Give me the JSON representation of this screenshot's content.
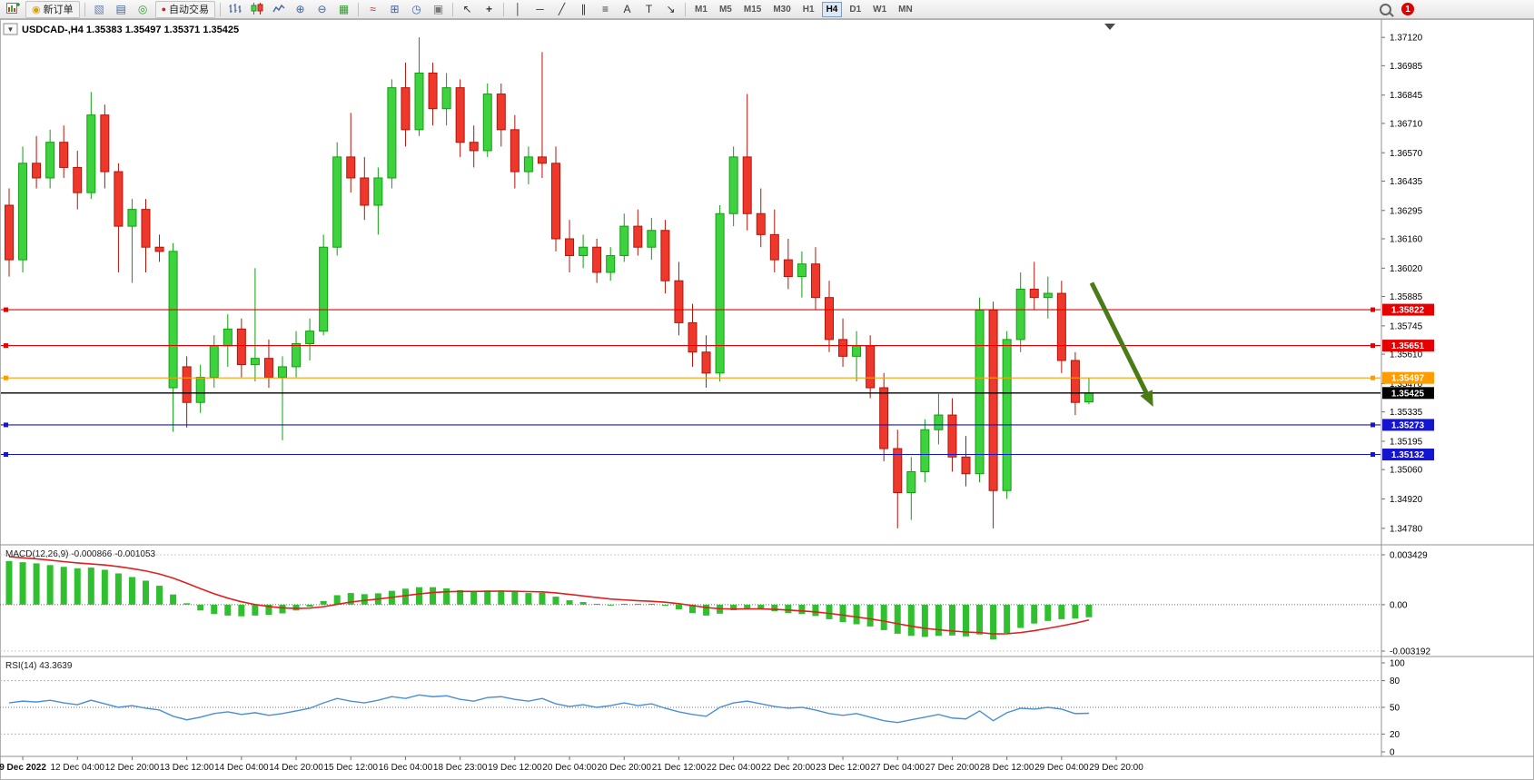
{
  "toolbar": {
    "new_order_label": "新订单",
    "autotrading_label": "自动交易",
    "notification_badge": "1",
    "tools": [
      {
        "glyph": "▧",
        "name": "profiles-button"
      },
      {
        "glyph": "▤",
        "name": "metaeditor-button"
      },
      {
        "glyph": "◎",
        "name": "market-info-button"
      },
      {
        "glyph": "⊕",
        "name": "zoom-in-button"
      },
      {
        "glyph": "⊖",
        "name": "zoom-out-button"
      },
      {
        "glyph": "▦",
        "name": "tile-windows-button"
      },
      {
        "glyph": "≈",
        "name": "indicators-button"
      },
      {
        "glyph": "⊞",
        "name": "add-indicator-button"
      },
      {
        "glyph": "◷",
        "name": "period-button"
      },
      {
        "glyph": "▣",
        "name": "templates-button"
      },
      {
        "glyph": "↖",
        "name": "cursor-button"
      },
      {
        "glyph": "+",
        "name": "crosshair-button"
      },
      {
        "glyph": "│",
        "name": "vertical-line-button"
      },
      {
        "glyph": "─",
        "name": "horizontal-line-button"
      },
      {
        "glyph": "╱",
        "name": "trendline-button"
      },
      {
        "glyph": "∥",
        "name": "channel-button"
      },
      {
        "glyph": "≡",
        "name": "fibonacci-button"
      },
      {
        "glyph": "A",
        "name": "text-button"
      },
      {
        "glyph": "T",
        "name": "text-label-button"
      },
      {
        "glyph": "↘",
        "name": "arrows-button"
      }
    ],
    "timeframes": {
      "options": [
        "M1",
        "M5",
        "M15",
        "M30",
        "H1",
        "H4",
        "D1",
        "W1",
        "MN"
      ],
      "active": "H4"
    }
  },
  "chart_data": {
    "type": "candlestick",
    "symbol": "USDCAD-,H4",
    "title": "USDCAD-,H4  1.35383 1.35497 1.35371 1.35425",
    "ohlc": {
      "open": 1.35383,
      "high": 1.35497,
      "low": 1.35371,
      "close": 1.35425
    },
    "colors": {
      "up": "#3fd23f",
      "up_border": "#0fa00f",
      "down": "#ef382c",
      "down_border": "#b31409",
      "background": "#ffffff"
    },
    "price_axis": {
      "top": 1.3719,
      "bottom": 1.3471,
      "labels": [
        "1.37120",
        "1.36985",
        "1.36845",
        "1.36710",
        "1.36570",
        "1.36435",
        "1.36295",
        "1.36160",
        "1.36020",
        "1.35885",
        "1.35745",
        "1.35610",
        "1.35470",
        "1.35335",
        "1.35195",
        "1.35060",
        "1.34920",
        "1.34780"
      ]
    },
    "candles": [
      [
        1.3632,
        1.364,
        1.3598,
        1.3606
      ],
      [
        1.3606,
        1.366,
        1.36,
        1.3652
      ],
      [
        1.3652,
        1.3665,
        1.364,
        1.3645
      ],
      [
        1.3645,
        1.3668,
        1.364,
        1.3662
      ],
      [
        1.3662,
        1.367,
        1.3645,
        1.365
      ],
      [
        1.365,
        1.3658,
        1.363,
        1.3638
      ],
      [
        1.3638,
        1.3686,
        1.3635,
        1.3675
      ],
      [
        1.3675,
        1.368,
        1.364,
        1.3648
      ],
      [
        1.3648,
        1.3652,
        1.36,
        1.3622
      ],
      [
        1.3622,
        1.3635,
        1.3595,
        1.363
      ],
      [
        1.363,
        1.3635,
        1.36,
        1.3612
      ],
      [
        1.3612,
        1.3618,
        1.3605,
        1.361
      ],
      [
        1.3545,
        1.3614,
        1.3524,
        1.361
      ],
      [
        1.3555,
        1.356,
        1.3526,
        1.3538
      ],
      [
        1.3538,
        1.3556,
        1.3533,
        1.355
      ],
      [
        1.355,
        1.357,
        1.3545,
        1.3565
      ],
      [
        1.3565,
        1.358,
        1.3555,
        1.3573
      ],
      [
        1.3573,
        1.3578,
        1.355,
        1.3556
      ],
      [
        1.3556,
        1.3602,
        1.3548,
        1.3559
      ],
      [
        1.3559,
        1.3568,
        1.3545,
        1.355
      ],
      [
        1.355,
        1.356,
        1.352,
        1.3555
      ],
      [
        1.3555,
        1.3572,
        1.355,
        1.3566
      ],
      [
        1.3566,
        1.3578,
        1.3558,
        1.3572
      ],
      [
        1.3572,
        1.3618,
        1.357,
        1.3612
      ],
      [
        1.3612,
        1.3662,
        1.3608,
        1.3655
      ],
      [
        1.3655,
        1.3676,
        1.3638,
        1.3645
      ],
      [
        1.3645,
        1.3655,
        1.3625,
        1.3632
      ],
      [
        1.3632,
        1.365,
        1.3618,
        1.3645
      ],
      [
        1.3645,
        1.3692,
        1.364,
        1.3688
      ],
      [
        1.3688,
        1.37,
        1.366,
        1.3668
      ],
      [
        1.3668,
        1.3712,
        1.3665,
        1.3695
      ],
      [
        1.3695,
        1.37,
        1.367,
        1.3678
      ],
      [
        1.3678,
        1.3695,
        1.367,
        1.3688
      ],
      [
        1.3688,
        1.3692,
        1.3655,
        1.3662
      ],
      [
        1.3662,
        1.367,
        1.365,
        1.3658
      ],
      [
        1.3658,
        1.369,
        1.3655,
        1.3685
      ],
      [
        1.3685,
        1.369,
        1.366,
        1.3668
      ],
      [
        1.3668,
        1.3675,
        1.364,
        1.3648
      ],
      [
        1.3648,
        1.366,
        1.3642,
        1.3655
      ],
      [
        1.3655,
        1.3705,
        1.3645,
        1.3652
      ],
      [
        1.3652,
        1.366,
        1.361,
        1.3616
      ],
      [
        1.3616,
        1.3625,
        1.36,
        1.3608
      ],
      [
        1.3608,
        1.3618,
        1.3602,
        1.3612
      ],
      [
        1.3612,
        1.3616,
        1.3595,
        1.36
      ],
      [
        1.36,
        1.3612,
        1.3596,
        1.3608
      ],
      [
        1.3608,
        1.3628,
        1.3605,
        1.3622
      ],
      [
        1.3622,
        1.363,
        1.3608,
        1.3612
      ],
      [
        1.3612,
        1.3626,
        1.3606,
        1.362
      ],
      [
        1.362,
        1.3625,
        1.359,
        1.3596
      ],
      [
        1.3596,
        1.3605,
        1.357,
        1.3576
      ],
      [
        1.3576,
        1.3585,
        1.3555,
        1.3562
      ],
      [
        1.3562,
        1.357,
        1.3545,
        1.3552
      ],
      [
        1.3552,
        1.3632,
        1.3548,
        1.3628
      ],
      [
        1.3628,
        1.366,
        1.3622,
        1.3655
      ],
      [
        1.3655,
        1.3685,
        1.362,
        1.3628
      ],
      [
        1.3628,
        1.364,
        1.3612,
        1.3618
      ],
      [
        1.3618,
        1.363,
        1.36,
        1.3606
      ],
      [
        1.3606,
        1.3616,
        1.3592,
        1.3598
      ],
      [
        1.3598,
        1.361,
        1.3588,
        1.3604
      ],
      [
        1.3604,
        1.3612,
        1.3582,
        1.3588
      ],
      [
        1.3588,
        1.3596,
        1.3562,
        1.3568
      ],
      [
        1.3568,
        1.3578,
        1.3555,
        1.356
      ],
      [
        1.356,
        1.3572,
        1.3548,
        1.3565
      ],
      [
        1.3565,
        1.357,
        1.354,
        1.3545
      ],
      [
        1.3545,
        1.3552,
        1.351,
        1.3516
      ],
      [
        1.3516,
        1.3525,
        1.3478,
        1.3495
      ],
      [
        1.3495,
        1.3512,
        1.3482,
        1.3505
      ],
      [
        1.3505,
        1.353,
        1.35,
        1.3525
      ],
      [
        1.3525,
        1.3542,
        1.3518,
        1.3532
      ],
      [
        1.3532,
        1.354,
        1.3505,
        1.3512
      ],
      [
        1.3512,
        1.3522,
        1.3498,
        1.3504
      ],
      [
        1.3504,
        1.3588,
        1.35,
        1.3582
      ],
      [
        1.3582,
        1.3586,
        1.3478,
        1.3496
      ],
      [
        1.3496,
        1.3572,
        1.3492,
        1.3568
      ],
      [
        1.3568,
        1.36,
        1.3562,
        1.3592
      ],
      [
        1.3592,
        1.3605,
        1.3582,
        1.3588
      ],
      [
        1.3588,
        1.3598,
        1.3578,
        1.359
      ],
      [
        1.359,
        1.3596,
        1.3552,
        1.3558
      ],
      [
        1.3558,
        1.3562,
        1.3532,
        1.3538
      ],
      [
        1.35383,
        1.35497,
        1.35371,
        1.35425
      ]
    ],
    "hlines": [
      {
        "price": 1.35822,
        "color": "#e60000",
        "label": "1.35822",
        "handles": true
      },
      {
        "price": 1.35651,
        "color": "#e60000",
        "label": "1.35651",
        "handles": true
      },
      {
        "price": 1.35497,
        "color": "#ff9c00",
        "label": "1.35497",
        "handles": true
      },
      {
        "price": 1.35425,
        "color": "#000000",
        "label": "1.35425",
        "handles": false
      },
      {
        "price": 1.35273,
        "color": "#1515d0",
        "label": "1.35273",
        "handles": true
      },
      {
        "price": 1.35132,
        "color": "#1515d0",
        "label": "1.35132",
        "handles": true
      }
    ],
    "arrow": {
      "i1": 79.2,
      "p1": 1.3595,
      "i2": 83.7,
      "p2": 1.3536,
      "color": "#4b7b17"
    },
    "time_axis": {
      "start_index": 1,
      "step": 4,
      "labels": [
        "9 Dec 2022",
        "12 Dec 04:00",
        "12 Dec 20:00",
        "13 Dec 12:00",
        "14 Dec 04:00",
        "14 Dec 20:00",
        "15 Dec 12:00",
        "16 Dec 04:00",
        "18 Dec 23:00",
        "19 Dec 12:00",
        "20 Dec 04:00",
        "20 Dec 20:00",
        "21 Dec 12:00",
        "22 Dec 04:00",
        "22 Dec 20:00",
        "23 Dec 12:00",
        "27 Dec 04:00",
        "27 Dec 20:00",
        "28 Dec 12:00",
        "29 Dec 04:00",
        "29 Dec 20:00"
      ]
    },
    "macd": {
      "label": "MACD(12,26,9) -0.000866 -0.001053",
      "values": {
        "macd": -0.000866,
        "signal": -0.001053
      },
      "scale": {
        "max": 0.003429,
        "min": -0.003192,
        "labels": [
          "0.003429",
          "0.00",
          "-0.003192"
        ]
      },
      "colors": {
        "histogram": "#2fbf2f",
        "signal": "#e02020"
      },
      "histogram": [
        0.003,
        0.00292,
        0.00284,
        0.00272,
        0.0026,
        0.0025,
        0.00255,
        0.0024,
        0.00215,
        0.0019,
        0.00165,
        0.0013,
        0.0007,
        0.0001,
        -0.0004,
        -0.00065,
        -0.00075,
        -0.0008,
        -0.00075,
        -0.0007,
        -0.0006,
        -0.0004,
        -0.00015,
        0.00025,
        0.00065,
        0.0008,
        0.00072,
        0.00078,
        0.00095,
        0.0011,
        0.0012,
        0.0012,
        0.00112,
        0.001,
        0.00092,
        0.00098,
        0.00098,
        0.00088,
        0.0008,
        0.00082,
        0.00055,
        0.0003,
        0.00018,
        6e-05,
        0.0,
        6e-05,
        6e-05,
        6e-05,
        -8e-05,
        -0.00032,
        -0.00058,
        -0.00075,
        -0.00062,
        -0.00038,
        -0.00025,
        -0.0003,
        -0.00045,
        -0.00058,
        -0.00065,
        -0.00078,
        -0.001,
        -0.0012,
        -0.00135,
        -0.0015,
        -0.00175,
        -0.002,
        -0.00215,
        -0.00222,
        -0.00215,
        -0.00212,
        -0.00218,
        -0.00205,
        -0.0024,
        -0.00195,
        -0.0016,
        -0.0013,
        -0.00112,
        -0.001,
        -0.00095,
        -0.000866
      ],
      "signal_line": [
        0.0033,
        0.00322,
        0.00315,
        0.00306,
        0.00296,
        0.00287,
        0.0028,
        0.00273,
        0.00262,
        0.00248,
        0.00232,
        0.00211,
        0.00183,
        0.00148,
        0.0011,
        0.00075,
        0.00045,
        0.0002,
        1e-05,
        -0.00013,
        -0.00022,
        -0.00026,
        -0.00024,
        -0.00014,
        2e-05,
        0.00018,
        0.00029,
        0.00039,
        0.0005,
        0.00062,
        0.00074,
        0.00083,
        0.00089,
        0.00091,
        0.00091,
        0.00092,
        0.00093,
        0.00092,
        0.0009,
        0.00088,
        0.00081,
        0.00071,
        0.0006,
        0.00049,
        0.00039,
        0.00033,
        0.00027,
        0.00023,
        0.00017,
        7e-05,
        -6e-05,
        -0.0002,
        -0.00028,
        -0.0003,
        -0.00029,
        -0.00029,
        -0.00032,
        -0.00037,
        -0.00043,
        -0.0005,
        -0.0006,
        -0.00072,
        -0.00085,
        -0.00098,
        -0.00113,
        -0.00131,
        -0.00148,
        -0.00163,
        -0.00173,
        -0.00181,
        -0.00188,
        -0.00192,
        -0.00201,
        -0.002,
        -0.00192,
        -0.00179,
        -0.00163,
        -0.00146,
        -0.00127,
        -0.001053
      ]
    },
    "rsi": {
      "label": "RSI(14) 43.3639",
      "value": 43.3639,
      "color": "#4a8fd4",
      "levels": [
        80,
        50,
        20
      ],
      "scale_labels": [
        "100",
        "80",
        "50",
        "20",
        "0"
      ],
      "values": [
        55,
        57,
        56,
        58,
        55,
        53,
        58,
        54,
        50,
        52,
        49,
        47,
        40,
        36,
        39,
        43,
        45,
        42,
        44,
        41,
        43,
        46,
        49,
        55,
        60,
        57,
        55,
        58,
        62,
        60,
        64,
        62,
        63,
        59,
        57,
        61,
        62,
        59,
        57,
        60,
        54,
        51,
        53,
        50,
        52,
        55,
        52,
        54,
        49,
        45,
        42,
        40,
        50,
        55,
        57,
        54,
        51,
        49,
        50,
        47,
        43,
        41,
        43,
        39,
        35,
        33,
        36,
        39,
        42,
        38,
        37,
        46,
        35,
        44,
        49,
        48,
        50,
        48,
        43,
        43.36
      ]
    }
  }
}
